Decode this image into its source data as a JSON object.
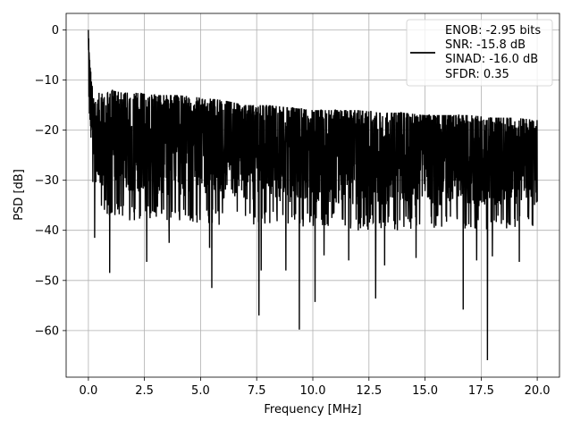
{
  "chart_data": {
    "type": "line",
    "title": "",
    "xlabel": "Frequency [MHz]",
    "ylabel": "PSD [dB]",
    "xlim": [
      -0.99,
      20.99
    ],
    "ylim": [
      -69.3,
      3.3
    ],
    "grid": true,
    "xticks": [
      0.0,
      2.5,
      5.0,
      7.5,
      10.0,
      12.5,
      15.0,
      17.5,
      20.0
    ],
    "xtick_labels": [
      "0.0",
      "2.5",
      "5.0",
      "7.5",
      "10.0",
      "12.5",
      "15.0",
      "17.5",
      "20.0"
    ],
    "yticks": [
      0,
      -10,
      -20,
      -30,
      -40,
      -50,
      -60
    ],
    "ytick_labels": [
      "0",
      "−10",
      "−20",
      "−30",
      "−40",
      "−50",
      "−60"
    ],
    "legend": {
      "placement": "top-right",
      "entries": [
        "ENOB: -2.95 bits",
        "SNR: -15.8 dB",
        "SINAD: -16.0 dB",
        "SFDR: 0.35"
      ]
    },
    "series": [
      {
        "color": "#000000",
        "envelope": {
          "x": [
            0.0,
            0.05,
            0.1,
            0.2,
            0.3,
            0.5,
            0.75,
            1.0,
            1.5,
            2.0,
            3.0,
            4.0,
            5.0,
            6.0,
            7.0,
            8.0,
            9.0,
            10.0,
            11.0,
            12.0,
            13.0,
            14.0,
            15.0,
            16.0,
            17.0,
            18.0,
            19.0,
            20.0
          ],
          "upper": [
            0,
            -5,
            -8,
            -12,
            -13,
            -12.5,
            -13,
            -12,
            -12.5,
            -12.5,
            -13,
            -13,
            -13.5,
            -14,
            -15,
            -15,
            -15.5,
            -16,
            -16,
            -16,
            -16.5,
            -16.5,
            -17,
            -17,
            -17,
            -17.5,
            -17.5,
            -18
          ],
          "lower": [
            -14,
            -25,
            -30,
            -32,
            -35,
            -36,
            -37,
            -37,
            -38,
            -38,
            -38,
            -38.5,
            -38.5,
            -39,
            -39,
            -39,
            -39.5,
            -39.5,
            -39.5,
            -40,
            -40,
            -40,
            -40,
            -40,
            -40,
            -40,
            -40,
            -40
          ]
        },
        "dips": [
          {
            "x": 0.28,
            "y": -41.5
          },
          {
            "x": 0.95,
            "y": -48.5
          },
          {
            "x": 2.6,
            "y": -46.3
          },
          {
            "x": 3.6,
            "y": -42.5
          },
          {
            "x": 5.5,
            "y": -51.5
          },
          {
            "x": 5.4,
            "y": -43.5
          },
          {
            "x": 7.6,
            "y": -57.0
          },
          {
            "x": 7.7,
            "y": -48.0
          },
          {
            "x": 8.8,
            "y": -48.0
          },
          {
            "x": 9.4,
            "y": -59.8
          },
          {
            "x": 10.1,
            "y": -54.3
          },
          {
            "x": 10.5,
            "y": -45.0
          },
          {
            "x": 11.6,
            "y": -46.0
          },
          {
            "x": 12.8,
            "y": -53.6
          },
          {
            "x": 13.2,
            "y": -47.0
          },
          {
            "x": 14.6,
            "y": -45.5
          },
          {
            "x": 16.7,
            "y": -55.8
          },
          {
            "x": 17.3,
            "y": -46.0
          },
          {
            "x": 17.78,
            "y": -65.9
          },
          {
            "x": 18.0,
            "y": -45.2
          },
          {
            "x": 19.2,
            "y": -46.3
          }
        ]
      }
    ]
  }
}
